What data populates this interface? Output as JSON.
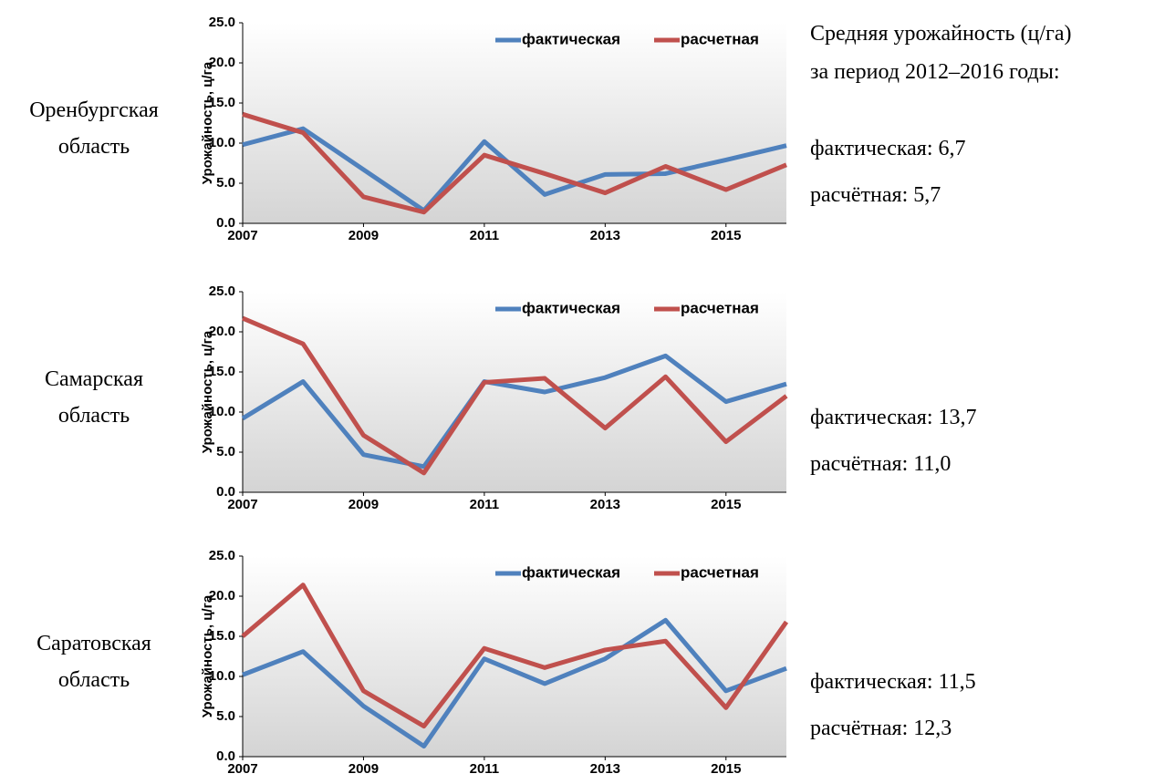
{
  "heading": [
    "Средняя урожайность (ц/га)",
    "за период 2012–2016 годы:"
  ],
  "chart_data": [
    {
      "type": "line",
      "title_lines": [
        "Оренбургская",
        "область"
      ],
      "summary_lines": [
        "фактическая: 6,7",
        "расчётная: 5,7"
      ],
      "ylabel": "Урожайность, ц/га",
      "x": [
        2007,
        2008,
        2009,
        2010,
        2011,
        2012,
        2013,
        2014,
        2015,
        2016
      ],
      "xlim": [
        2007,
        2016
      ],
      "xticks": [
        2007,
        2009,
        2011,
        2013,
        2015
      ],
      "ylim": [
        0,
        25
      ],
      "yticks": [
        {
          "value": 0,
          "label": "0.0"
        },
        {
          "value": 5,
          "label": "5.0"
        },
        {
          "value": 10,
          "label": "10.0"
        },
        {
          "value": 15,
          "label": "15.0"
        },
        {
          "value": 20,
          "label": "20.0"
        },
        {
          "value": 25,
          "label": "25.0"
        }
      ],
      "legend": "top-right",
      "series": [
        {
          "name": "фактическая",
          "color": "#4f81bd",
          "values": [
            9.8,
            11.8,
            6.7,
            1.6,
            10.2,
            3.6,
            6.1,
            6.2,
            7.9,
            9.7
          ]
        },
        {
          "name": "расчетная",
          "color": "#c0504d",
          "values": [
            13.6,
            11.3,
            3.3,
            1.4,
            8.5,
            6.2,
            3.8,
            7.1,
            4.2,
            7.3
          ]
        }
      ]
    },
    {
      "type": "line",
      "title_lines": [
        "Самарская",
        "область"
      ],
      "summary_lines": [
        "фактическая: 13,7",
        "расчётная: 11,0"
      ],
      "ylabel": "Урожайность, ц/га",
      "x": [
        2007,
        2008,
        2009,
        2010,
        2011,
        2012,
        2013,
        2014,
        2015,
        2016
      ],
      "xlim": [
        2007,
        2016
      ],
      "xticks": [
        2007,
        2009,
        2011,
        2013,
        2015
      ],
      "ylim": [
        0,
        25
      ],
      "yticks": [
        {
          "value": 0,
          "label": "0.0"
        },
        {
          "value": 5,
          "label": "5.0"
        },
        {
          "value": 10,
          "label": "10.0"
        },
        {
          "value": 15,
          "label": "15.0"
        },
        {
          "value": 20,
          "label": "20.0"
        },
        {
          "value": 25,
          "label": "25.0"
        }
      ],
      "legend": "top-right",
      "series": [
        {
          "name": "фактическая",
          "color": "#4f81bd",
          "values": [
            9.2,
            13.8,
            4.7,
            3.2,
            13.8,
            12.5,
            14.3,
            17.0,
            11.3,
            13.5
          ]
        },
        {
          "name": "расчетная",
          "color": "#c0504d",
          "values": [
            21.7,
            18.5,
            7.1,
            2.4,
            13.7,
            14.2,
            8.0,
            14.4,
            6.3,
            12.0
          ]
        }
      ]
    },
    {
      "type": "line",
      "title_lines": [
        "Саратовская",
        "область"
      ],
      "summary_lines": [
        "фактическая: 11,5",
        "расчётная: 12,3"
      ],
      "ylabel": "Урожайность, ц/га",
      "x": [
        2007,
        2008,
        2009,
        2010,
        2011,
        2012,
        2013,
        2014,
        2015,
        2016
      ],
      "xlim": [
        2007,
        2016
      ],
      "xticks": [
        2007,
        2009,
        2011,
        2013,
        2015
      ],
      "ylim": [
        0,
        25
      ],
      "yticks": [
        {
          "value": 0,
          "label": "0.0"
        },
        {
          "value": 5,
          "label": "5.0"
        },
        {
          "value": 10,
          "label": "10.0"
        },
        {
          "value": 15,
          "label": "15.0"
        },
        {
          "value": 20,
          "label": "20.0"
        },
        {
          "value": 25,
          "label": "25.0"
        }
      ],
      "legend": "top-right",
      "series": [
        {
          "name": "фактическая",
          "color": "#4f81bd",
          "values": [
            10.2,
            13.1,
            6.3,
            1.3,
            12.2,
            9.1,
            12.2,
            17.0,
            8.2,
            11.0
          ]
        },
        {
          "name": "расчетная",
          "color": "#c0504d",
          "values": [
            15.0,
            21.4,
            8.2,
            3.8,
            13.5,
            11.1,
            13.3,
            14.4,
            6.1,
            16.8
          ]
        }
      ]
    }
  ]
}
